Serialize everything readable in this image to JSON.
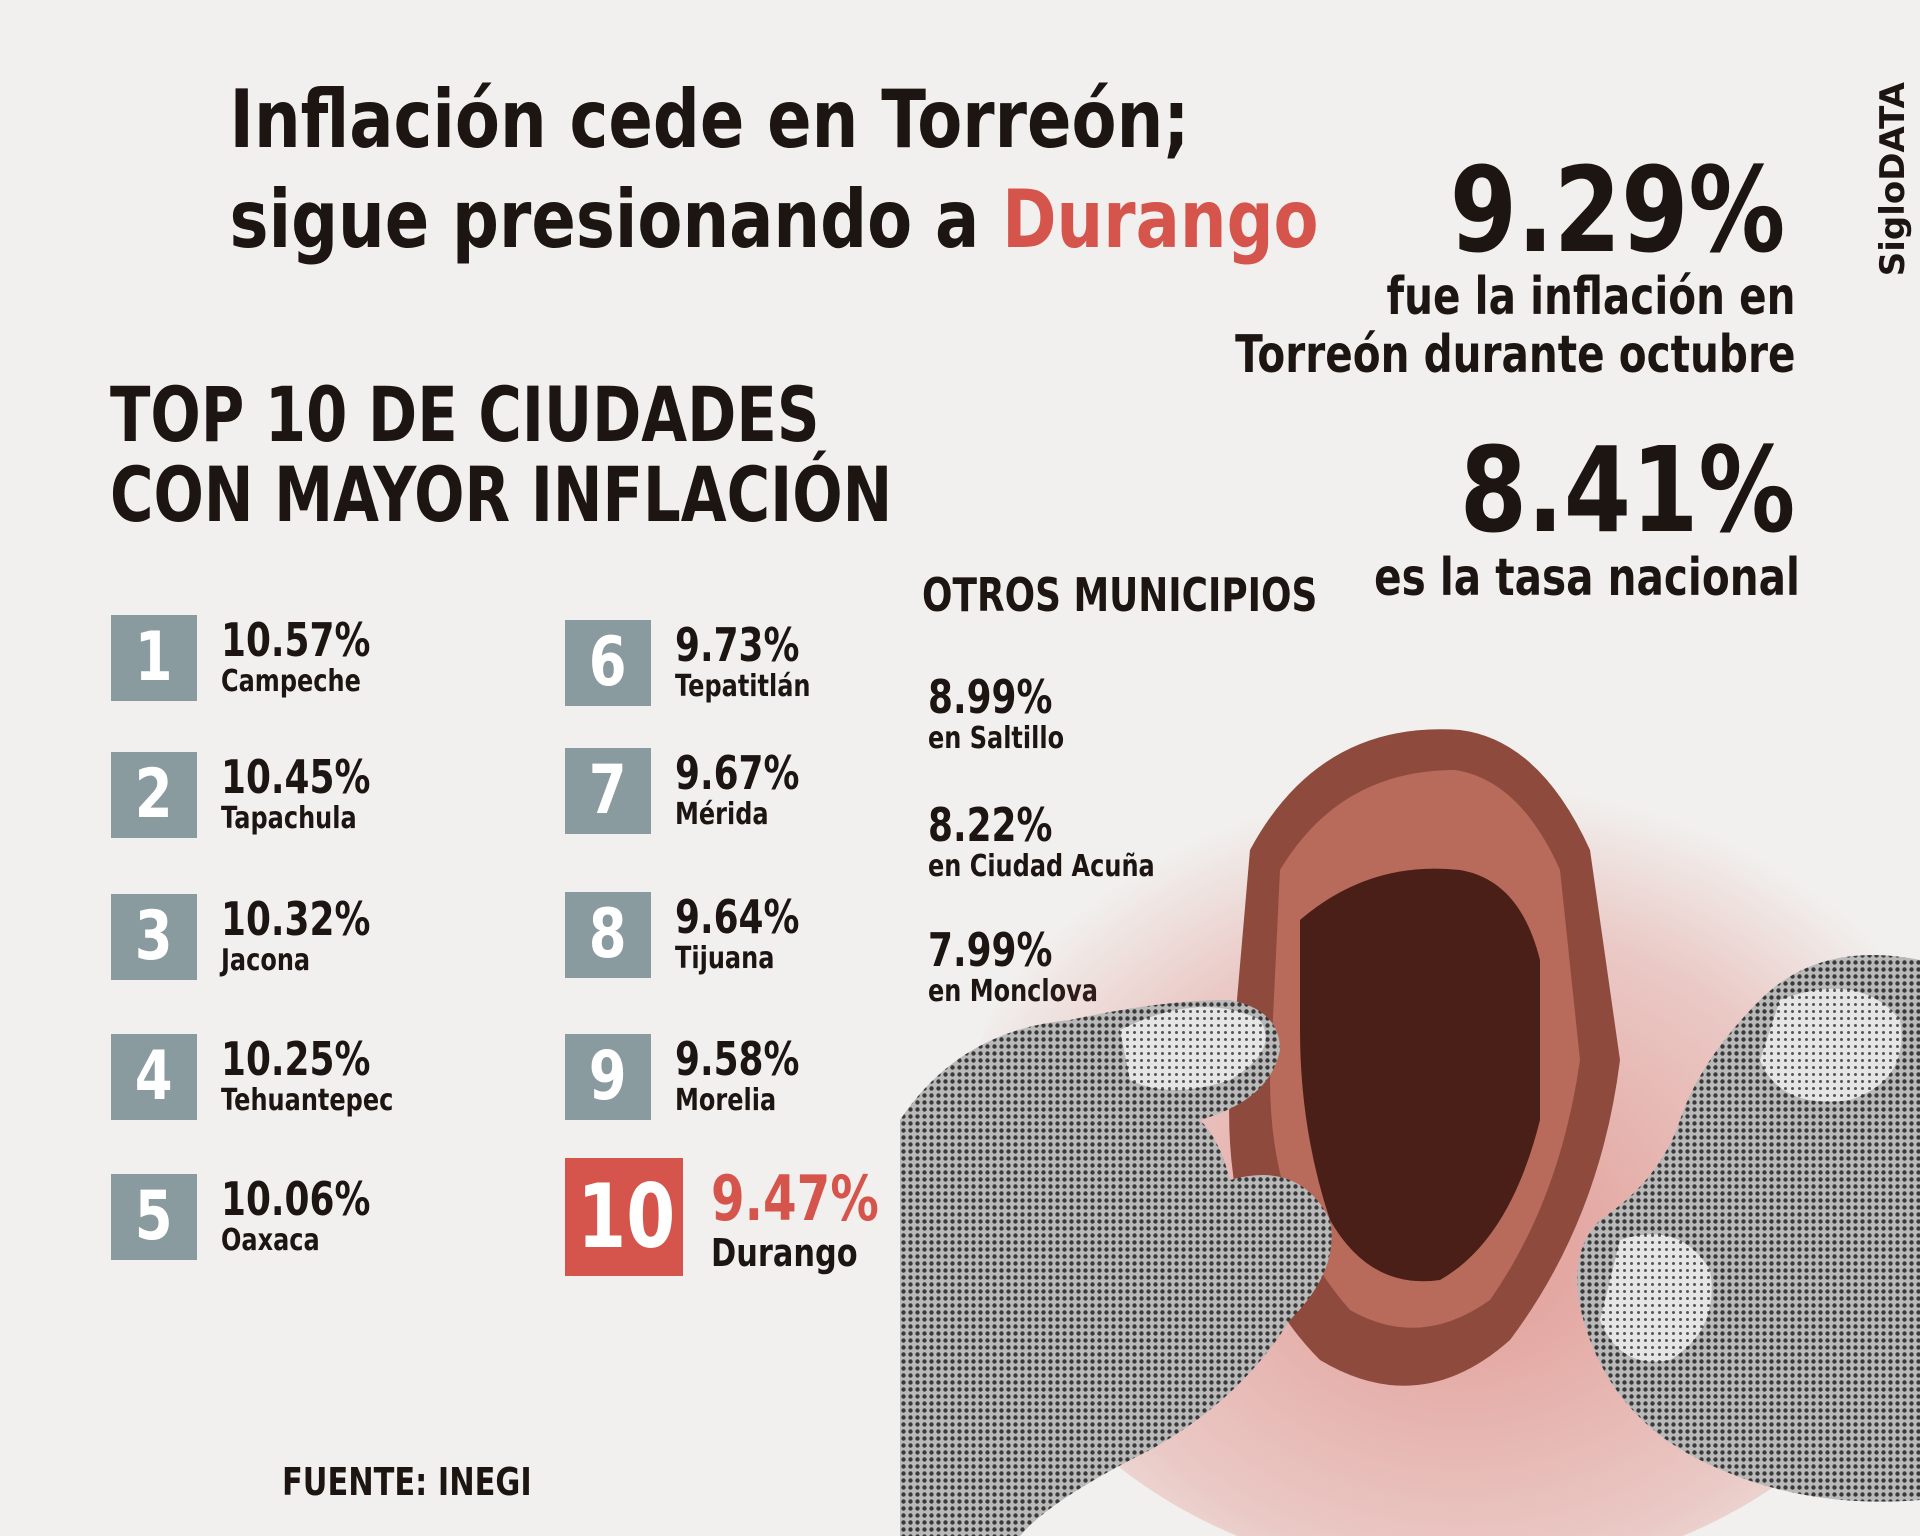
{
  "title": {
    "line1": "Inflación cede en Torreón;",
    "line2_prefix": "sigue presionando a ",
    "line2_highlight": "Durango"
  },
  "brand": "SigloDATA",
  "stats": {
    "torreon": {
      "value": "9.29%",
      "caption_line1": "fue la inflación en",
      "caption_line2": "Torreón durante octubre"
    },
    "nacional": {
      "value": "8.41%",
      "caption": "es la tasa nacional"
    }
  },
  "top10": {
    "heading_line1": "TOP 10 DE CIUDADES",
    "heading_line2": "CON MAYOR INFLACIÓN",
    "items": [
      {
        "rank": "1",
        "pct": "10.57%",
        "city": "Campeche"
      },
      {
        "rank": "2",
        "pct": "10.45%",
        "city": "Tapachula"
      },
      {
        "rank": "3",
        "pct": "10.32%",
        "city": "Jacona"
      },
      {
        "rank": "4",
        "pct": "10.25%",
        "city": "Tehuantepec"
      },
      {
        "rank": "5",
        "pct": "10.06%",
        "city": "Oaxaca"
      },
      {
        "rank": "6",
        "pct": "9.73%",
        "city": "Tepatitlán"
      },
      {
        "rank": "7",
        "pct": "9.67%",
        "city": "Mérida"
      },
      {
        "rank": "8",
        "pct": "9.64%",
        "city": "Tijuana"
      },
      {
        "rank": "9",
        "pct": "9.58%",
        "city": "Morelia"
      },
      {
        "rank": "10",
        "pct": "9.47%",
        "city": "Durango"
      }
    ]
  },
  "otros": {
    "heading": "OTROS MUNICIPIOS",
    "items": [
      {
        "pct": "8.99%",
        "city": "en Saltillo"
      },
      {
        "pct": "8.22%",
        "city": "en Ciudad Acuña"
      },
      {
        "pct": "7.99%",
        "city": "en Monclova"
      }
    ]
  },
  "source": "FUENTE: INEGI",
  "colors": {
    "accent": "#d5544b",
    "rank_box": "#8a9ba0",
    "text": "#1c1512",
    "background": "#f1f0ee"
  },
  "illustration": "hands-empty-wallet-icon"
}
